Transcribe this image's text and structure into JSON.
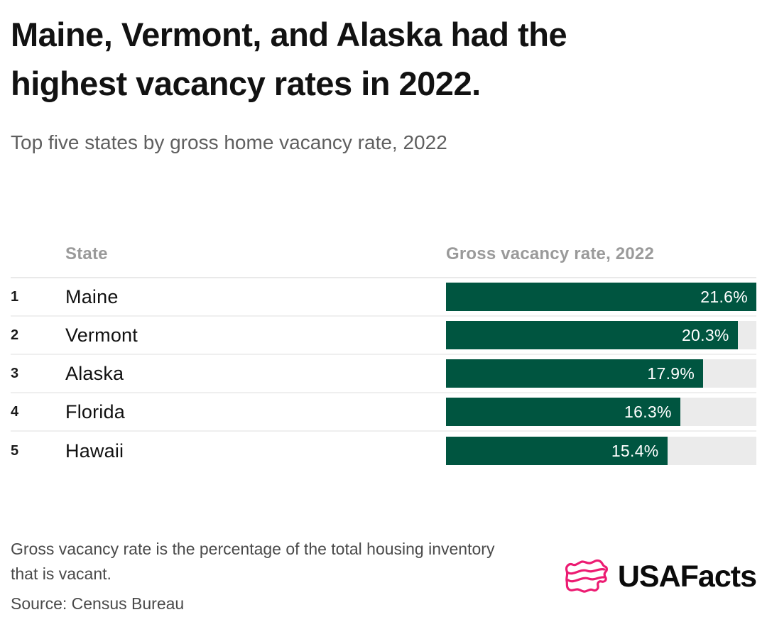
{
  "header": {
    "title": "Maine, Vermont, and Alaska had the highest vacancy rates in 2022.",
    "title_lines": [
      "Maine, Vermont, and Alaska had the",
      "highest vacancy rates in 2022."
    ],
    "subtitle": "Top five states by gross home vacancy rate, 2022"
  },
  "table": {
    "columns": [
      "State",
      "Gross vacancy rate, 2022"
    ]
  },
  "chart_data": {
    "type": "bar",
    "orientation": "horizontal",
    "title": "Maine, Vermont, and Alaska had the highest vacancy rates in 2022.",
    "subtitle": "Top five states by gross home vacancy rate, 2022",
    "columns": [
      "State",
      "Gross vacancy rate, 2022"
    ],
    "categories": [
      "Maine",
      "Vermont",
      "Alaska",
      "Florida",
      "Hawaii"
    ],
    "ranks": [
      "1",
      "2",
      "3",
      "4",
      "5"
    ],
    "values": [
      21.6,
      20.3,
      17.9,
      16.3,
      15.4
    ],
    "value_labels": [
      "21.6%",
      "20.3%",
      "17.9%",
      "16.3%",
      "15.4%"
    ],
    "xlim": [
      0,
      21.6
    ],
    "grid": false,
    "legend": false,
    "bar_color": "#005540",
    "track_color": "#ebebeb",
    "value_label_color": "#ffffff"
  },
  "footer": {
    "note": "Gross vacancy rate is the percentage of the total housing inventory that is vacant.",
    "note_lines": [
      "Gross vacancy rate is the percentage of the total housing inventory",
      "that is vacant."
    ],
    "source": "Source: Census Bureau",
    "logo_text": "USAFacts"
  },
  "colors": {
    "accent_green": "#005540",
    "track_gray": "#ebebeb",
    "brand_pink": "#ec1b72",
    "title_text": "#121212",
    "muted_text": "#5f5f5f",
    "column_header_text": "#9a9a9a",
    "separator": "#efefef"
  }
}
